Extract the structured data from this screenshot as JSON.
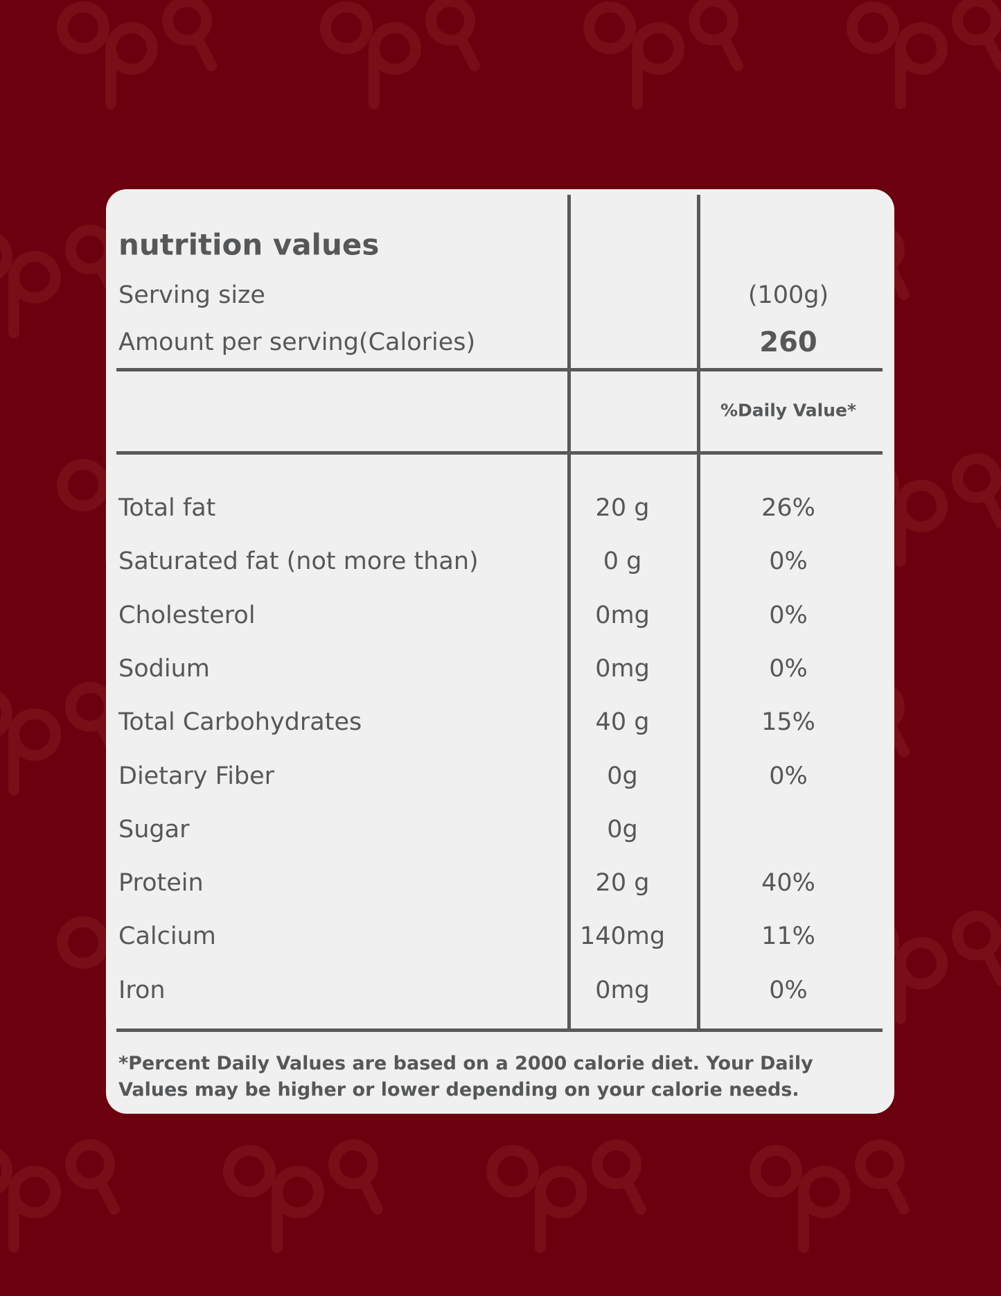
{
  "colors": {
    "background": "#6b000e",
    "card": "#f0f0f0",
    "text": "#555759"
  },
  "header": {
    "title": "nutrition values",
    "serving_label": "Serving size",
    "serving_value": "(100g)",
    "calories_label": "Amount per serving(Calories)",
    "calories_value": "260",
    "daily_value_header": "%Daily Value*"
  },
  "rows": [
    {
      "name": "Total fat",
      "amount": "20 g",
      "dv": "26%"
    },
    {
      "name": "Saturated fat (not more than)",
      "amount": "0 g",
      "dv": "0%"
    },
    {
      "name": "Cholesterol",
      "amount": "0mg",
      "dv": "0%"
    },
    {
      "name": "Sodium",
      "amount": "0mg",
      "dv": "0%"
    },
    {
      "name": "Total Carbohydrates",
      "amount": "40 g",
      "dv": "15%"
    },
    {
      "name": "Dietary Fiber",
      "amount": "0g",
      "dv": "0%"
    },
    {
      "name": "Sugar",
      "amount": "0g",
      "dv": ""
    },
    {
      "name": "Protein",
      "amount": "20 g",
      "dv": "40%"
    },
    {
      "name": "Calcium",
      "amount": "140mg",
      "dv": "11%"
    },
    {
      "name": "Iron",
      "amount": "0mg",
      "dv": "0%"
    }
  ],
  "footnote": "*Percent Daily Values are based on a 2000 calorie diet. Your Daily Values may be higher or lower depending on your calorie needs."
}
